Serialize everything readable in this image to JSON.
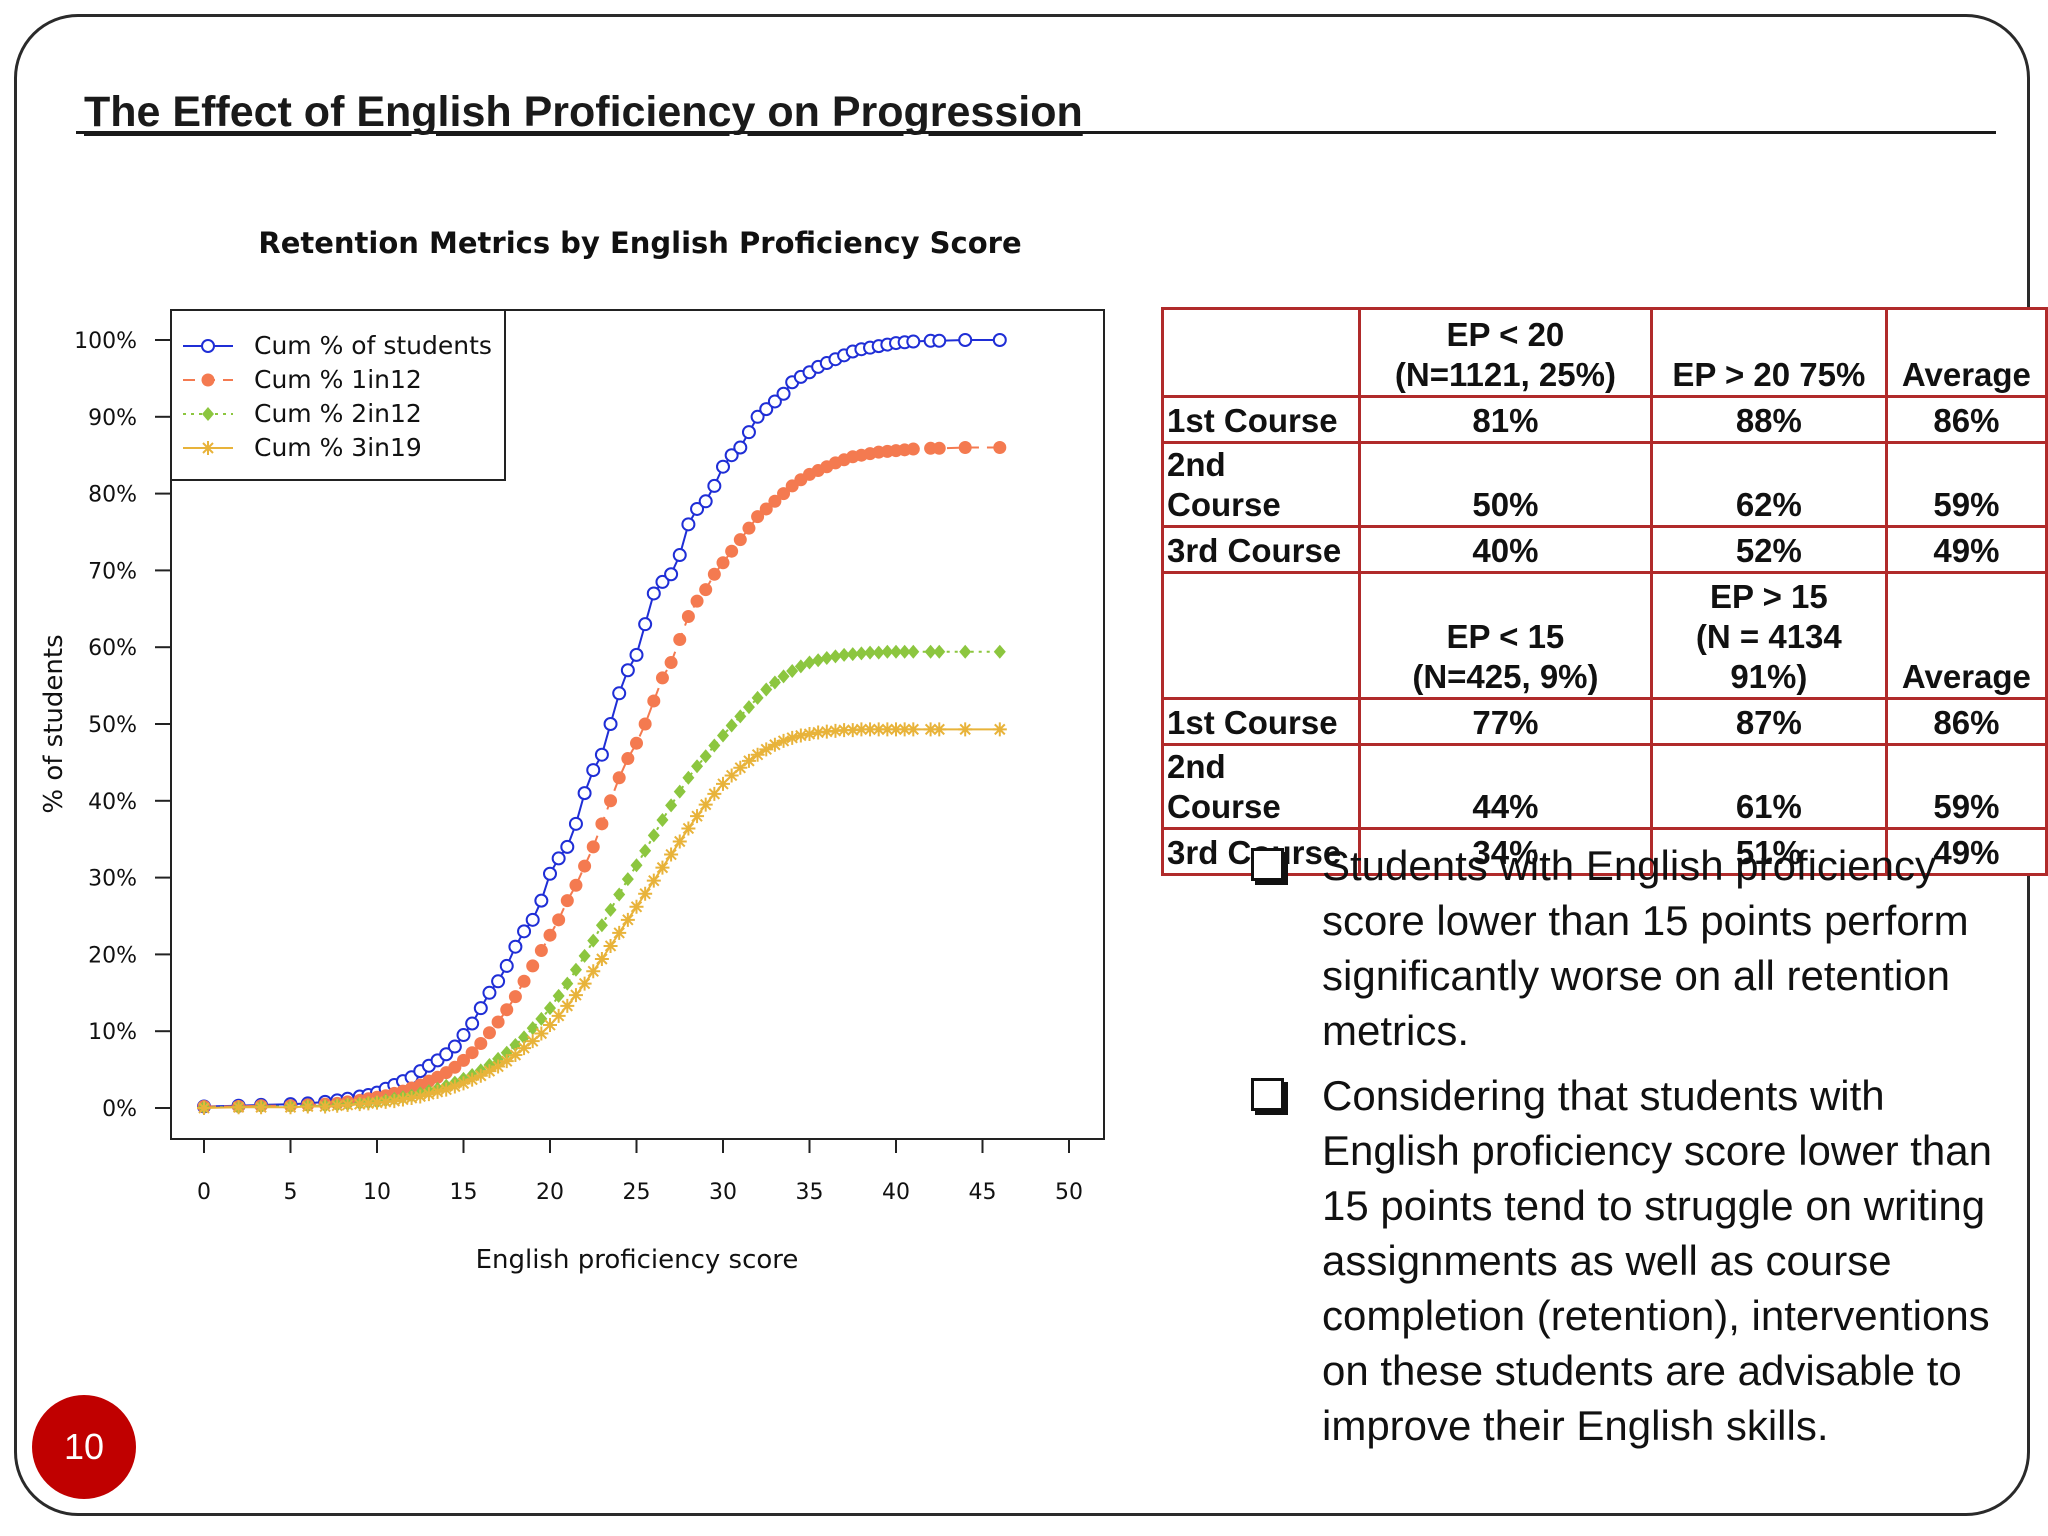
{
  "slide": {
    "title": "The Effect of English Proficiency on Progression",
    "page_number": "10"
  },
  "chart_data": {
    "type": "line",
    "title": "Retention Metrics by English Proficiency Score",
    "xlabel": "English proficiency score",
    "ylabel": "% of students",
    "xlim": [
      0,
      50
    ],
    "ylim": [
      0,
      100
    ],
    "x_ticks": [
      0,
      5,
      10,
      15,
      20,
      25,
      30,
      35,
      40,
      45,
      50
    ],
    "y_ticks": [
      "0%",
      "10%",
      "20%",
      "30%",
      "40%",
      "50%",
      "60%",
      "70%",
      "80%",
      "90%",
      "100%"
    ],
    "grid": false,
    "legend_position": "top-left",
    "x": [
      0,
      2,
      3.3,
      5,
      6,
      7,
      7.7,
      8.3,
      9,
      9.5,
      10,
      10.5,
      11,
      11.5,
      12,
      12.5,
      13,
      13.5,
      14,
      14.5,
      15,
      15.5,
      16,
      16.5,
      17,
      17.5,
      18,
      18.5,
      19,
      19.5,
      20,
      20.5,
      21,
      21.5,
      22,
      22.5,
      23,
      23.5,
      24,
      24.5,
      25,
      25.5,
      26,
      26.5,
      27,
      27.5,
      28,
      28.5,
      29,
      29.5,
      30,
      30.5,
      31,
      31.5,
      32,
      32.5,
      33,
      33.5,
      34,
      34.5,
      35,
      35.5,
      36,
      36.5,
      37,
      37.5,
      38,
      38.5,
      39,
      39.5,
      40,
      40.5,
      41,
      42,
      42.5,
      44,
      46
    ],
    "series": [
      {
        "name": "Cum % of students",
        "color": "#1f2ed6",
        "marker": "open-circle",
        "line": "solid",
        "values": [
          0.2,
          0.3,
          0.4,
          0.5,
          0.6,
          0.8,
          1.0,
          1.2,
          1.5,
          1.7,
          2.0,
          2.5,
          3.0,
          3.5,
          4.0,
          4.8,
          5.5,
          6.2,
          7.0,
          8.0,
          9.5,
          11.0,
          13.0,
          15.0,
          16.5,
          18.5,
          21.0,
          23.0,
          24.5,
          27.0,
          30.5,
          32.5,
          34.0,
          37.0,
          41.0,
          44.0,
          46.0,
          50.0,
          54.0,
          57.0,
          59.0,
          63.0,
          67.0,
          68.5,
          69.5,
          72.0,
          76.0,
          78.0,
          79.0,
          81.0,
          83.5,
          85.0,
          86.0,
          88.0,
          90.0,
          91.0,
          92.0,
          93.0,
          94.5,
          95.2,
          95.8,
          96.5,
          97.0,
          97.5,
          98.0,
          98.5,
          98.8,
          99.0,
          99.2,
          99.4,
          99.6,
          99.7,
          99.8,
          99.9,
          99.9,
          100.0,
          100.0
        ]
      },
      {
        "name": "Cum % 1in12",
        "color": "#f47a50",
        "marker": "filled-circle",
        "line": "dashed",
        "values": [
          0.2,
          0.2,
          0.3,
          0.3,
          0.4,
          0.5,
          0.6,
          0.8,
          1.0,
          1.2,
          1.4,
          1.6,
          1.9,
          2.2,
          2.6,
          3.0,
          3.5,
          4.0,
          4.6,
          5.3,
          6.2,
          7.2,
          8.4,
          9.8,
          11.2,
          12.8,
          14.5,
          16.5,
          18.5,
          20.5,
          22.5,
          24.5,
          27.0,
          29.0,
          31.5,
          34.0,
          37.0,
          40.0,
          43.0,
          45.5,
          47.5,
          50.0,
          53.0,
          56.0,
          58.0,
          61.0,
          64.0,
          66.0,
          67.5,
          69.5,
          71.0,
          72.5,
          74.0,
          75.5,
          77.0,
          78.0,
          79.0,
          80.0,
          81.0,
          81.8,
          82.5,
          83.0,
          83.5,
          84.0,
          84.4,
          84.8,
          85.0,
          85.2,
          85.4,
          85.5,
          85.6,
          85.7,
          85.8,
          85.9,
          85.9,
          86.0,
          86.0
        ]
      },
      {
        "name": "Cum % 2in12",
        "color": "#8cc63f",
        "marker": "filled-diamond",
        "line": "dotted",
        "values": [
          0.1,
          0.1,
          0.2,
          0.2,
          0.3,
          0.3,
          0.4,
          0.5,
          0.6,
          0.7,
          0.8,
          1.0,
          1.2,
          1.4,
          1.6,
          1.9,
          2.2,
          2.5,
          2.9,
          3.3,
          3.8,
          4.3,
          4.9,
          5.6,
          6.4,
          7.2,
          8.2,
          9.2,
          10.4,
          11.6,
          13.0,
          14.6,
          16.2,
          18.0,
          19.8,
          21.8,
          23.8,
          25.8,
          27.8,
          29.8,
          31.6,
          33.5,
          35.5,
          37.5,
          39.4,
          41.2,
          43.0,
          44.5,
          45.8,
          47.2,
          48.5,
          49.8,
          51.0,
          52.2,
          53.4,
          54.5,
          55.4,
          56.2,
          56.9,
          57.5,
          58.0,
          58.3,
          58.6,
          58.8,
          59.0,
          59.1,
          59.2,
          59.3,
          59.3,
          59.4,
          59.4,
          59.4,
          59.4,
          59.4,
          59.4,
          59.4,
          59.4
        ]
      },
      {
        "name": "Cum % 3in19",
        "color": "#e8b33a",
        "marker": "asterisk",
        "line": "solid",
        "values": [
          0.0,
          0.1,
          0.1,
          0.1,
          0.2,
          0.2,
          0.3,
          0.4,
          0.5,
          0.6,
          0.7,
          0.8,
          0.9,
          1.1,
          1.3,
          1.5,
          1.8,
          2.1,
          2.4,
          2.8,
          3.2,
          3.7,
          4.2,
          4.8,
          5.4,
          6.1,
          6.9,
          7.8,
          8.7,
          9.7,
          10.8,
          12.0,
          13.3,
          14.7,
          16.2,
          17.8,
          19.4,
          21.1,
          22.8,
          24.5,
          26.2,
          27.9,
          29.6,
          31.3,
          33.0,
          34.7,
          36.4,
          38.0,
          39.5,
          40.9,
          42.2,
          43.3,
          44.3,
          45.2,
          46.0,
          46.7,
          47.3,
          47.8,
          48.2,
          48.5,
          48.7,
          48.9,
          49.0,
          49.1,
          49.2,
          49.2,
          49.3,
          49.3,
          49.3,
          49.3,
          49.3,
          49.3,
          49.3,
          49.3,
          49.3,
          49.3,
          49.3
        ]
      }
    ]
  },
  "table": {
    "rows": [
      {
        "type": "header",
        "cells": [
          "",
          "EP < 20\n(N=1121, 25%)",
          "EP > 20 75%",
          "Average"
        ]
      },
      {
        "type": "data",
        "cells": [
          "1st Course",
          "81%",
          "88%",
          "86%"
        ]
      },
      {
        "type": "data",
        "cells": [
          "2nd\nCourse",
          "50%",
          "62%",
          "59%"
        ]
      },
      {
        "type": "data",
        "cells": [
          "3rd Course",
          "40%",
          "52%",
          "49%"
        ]
      },
      {
        "type": "header",
        "cells": [
          "",
          "EP < 15\n(N=425, 9%)",
          "EP > 15\n(N = 4134\n91%)",
          "Average"
        ]
      },
      {
        "type": "data",
        "cells": [
          "1st Course",
          "77%",
          "87%",
          "86%"
        ]
      },
      {
        "type": "data",
        "cells": [
          "2nd\nCourse",
          "44%",
          "61%",
          "59%"
        ]
      },
      {
        "type": "data",
        "cells": [
          "3rd Course",
          "34%",
          "51%",
          "49%"
        ]
      }
    ]
  },
  "bullets": [
    "Students with English proficiency score lower than 15 points perform significantly worse on all retention metrics.",
    "Considering that students with English proficiency score lower than 15 points tend to struggle on writing assignments as well as course completion (retention), interventions on these students are advisable to improve their English skills."
  ]
}
